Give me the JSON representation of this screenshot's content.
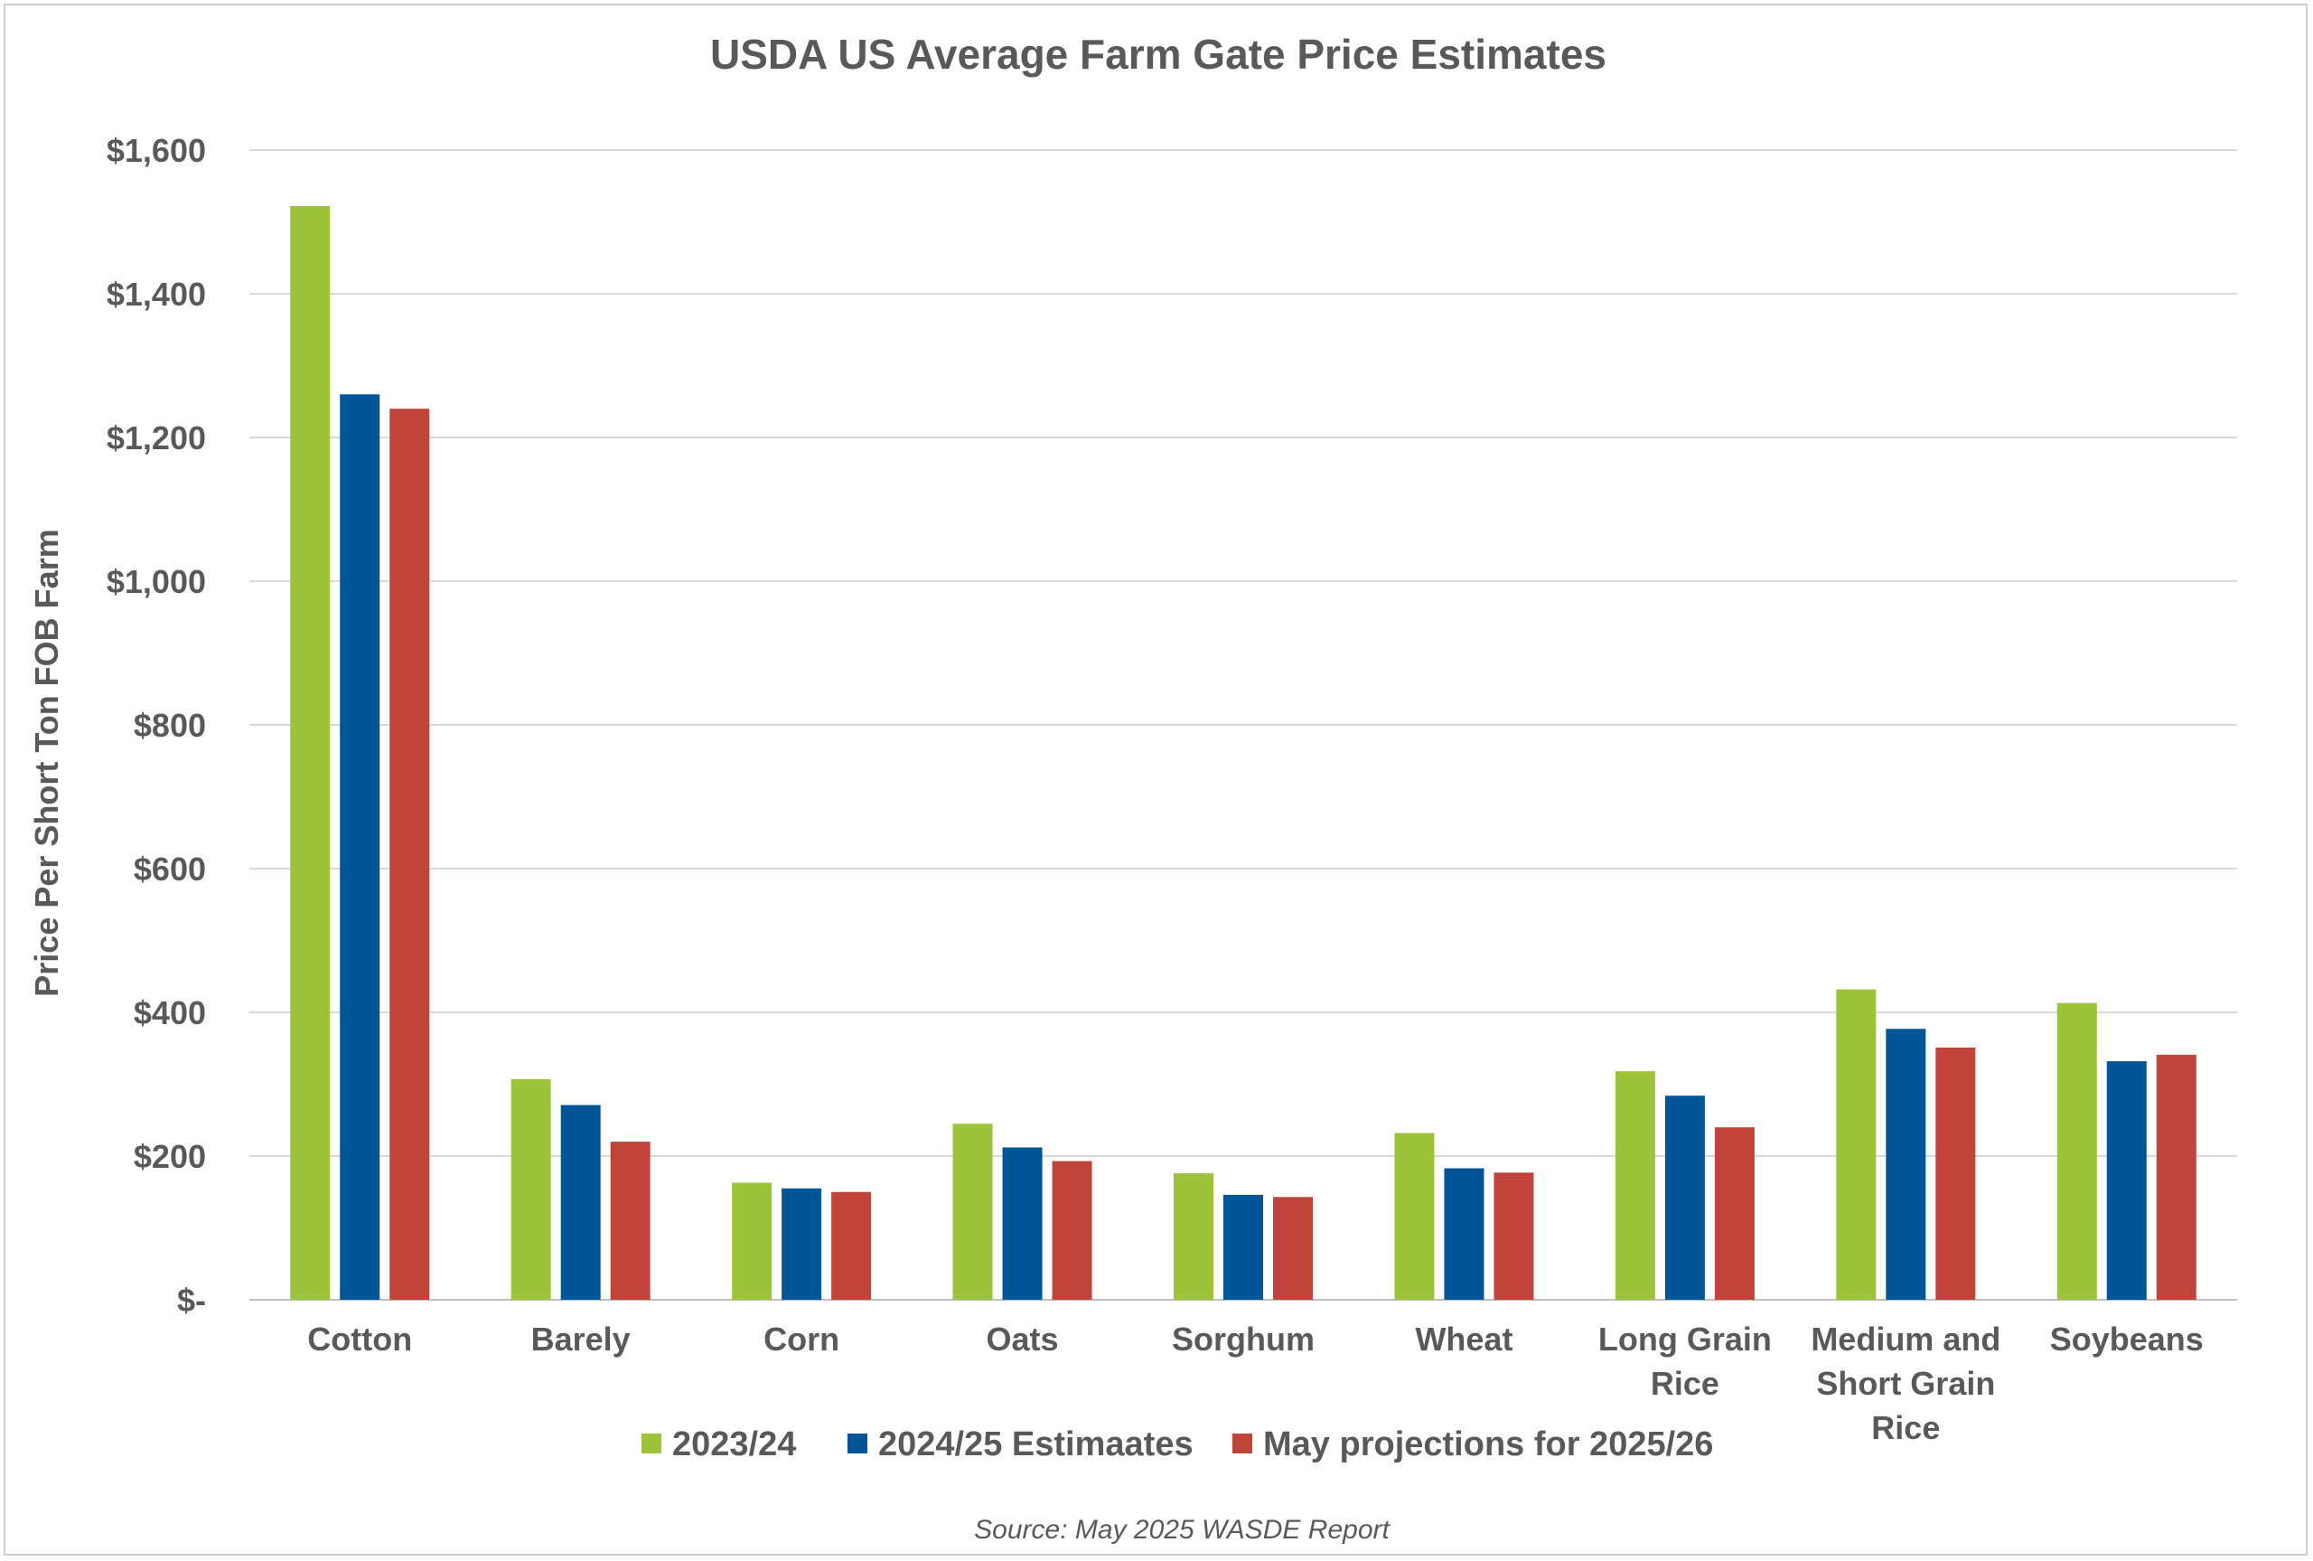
{
  "chart_data": {
    "type": "bar",
    "title": "USDA US Average Farm Gate Price Estimates",
    "ylabel": "Price Per Short Ton FOB Farm",
    "xlabel": "",
    "ylim": [
      0,
      1600
    ],
    "yticks": [
      0,
      200,
      400,
      600,
      800,
      1000,
      1200,
      1400,
      1600
    ],
    "ytick_labels": [
      "$-",
      "$200",
      "$400",
      "$600",
      "$800",
      "$1,000",
      "$1,200",
      "$1,400",
      "$1,600"
    ],
    "categories": [
      [
        "Cotton"
      ],
      [
        "Barely"
      ],
      [
        "Corn"
      ],
      [
        "Oats"
      ],
      [
        "Sorghum"
      ],
      [
        "Wheat"
      ],
      [
        "Long Grain",
        "Rice"
      ],
      [
        "Medium and",
        "Short Grain",
        "Rice"
      ],
      [
        "Soybeans"
      ]
    ],
    "series": [
      {
        "name": "2023/24",
        "color": "#9dc33b",
        "values": [
          1522,
          307,
          163,
          245,
          176,
          232,
          318,
          432,
          413
        ]
      },
      {
        "name": "2024/25 Estimaates",
        "color": "#005596",
        "values": [
          1260,
          271,
          155,
          212,
          146,
          183,
          284,
          377,
          332
        ]
      },
      {
        "name": "May projections for 2025/26",
        "color": "#c0443a",
        "values": [
          1240,
          220,
          150,
          193,
          143,
          177,
          240,
          351,
          341
        ]
      }
    ],
    "grid": true,
    "legend": "bottom",
    "source": "Source: May 2025 WASDE Report"
  }
}
